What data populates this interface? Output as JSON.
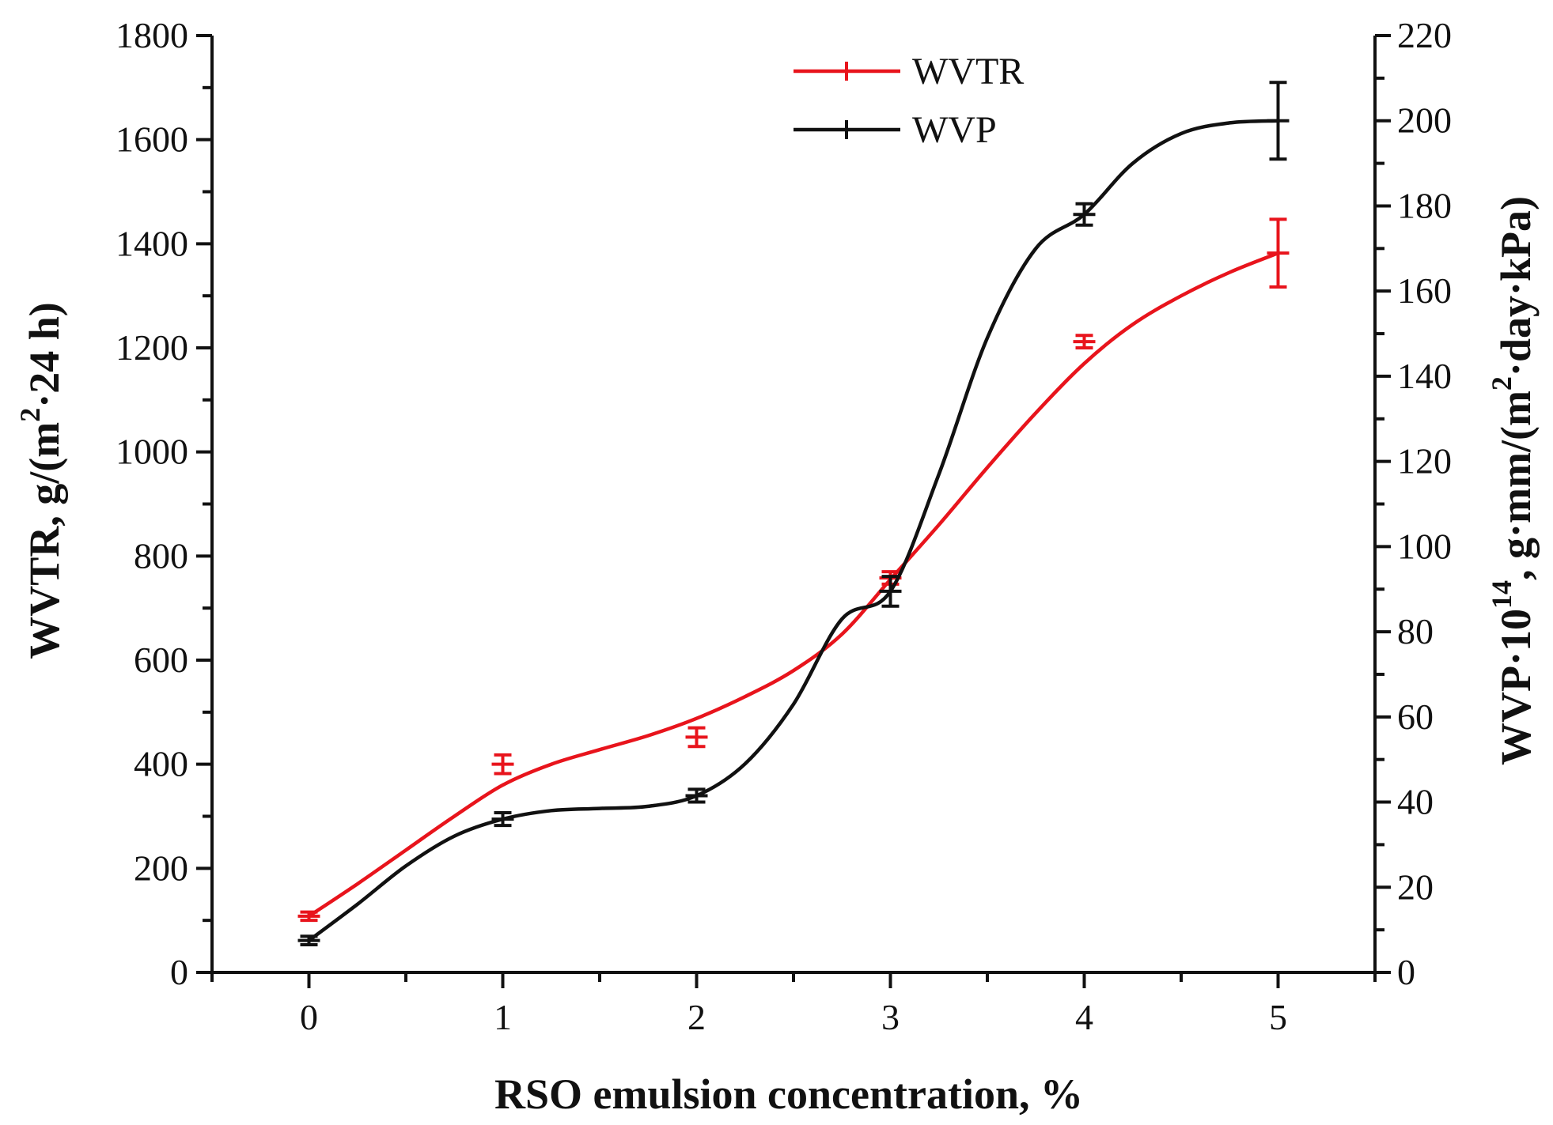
{
  "chart_data": {
    "type": "line",
    "title": "",
    "xlabel": "RSO emulsion concentration, %",
    "ylabel_left": {
      "prefix": "WVTR, g/(m",
      "sup": "2",
      "suffix": "·24 h)"
    },
    "ylabel_right": {
      "p1": "WVP·10",
      "sup1": "14",
      "p2": ", g·mm/(m",
      "sup2": "2",
      "p3": "·day·kPa)"
    },
    "x": [
      0,
      1,
      2,
      3,
      4,
      5
    ],
    "xlim": [
      -0.5,
      5.5
    ],
    "ylim_left": [
      0,
      1800
    ],
    "ylim_right": [
      0,
      220
    ],
    "x_ticks": [
      "0",
      "1",
      "2",
      "3",
      "4",
      "5"
    ],
    "y_left_ticks": [
      "0",
      "200",
      "400",
      "600",
      "800",
      "1000",
      "1200",
      "1400",
      "1600",
      "1800"
    ],
    "y_right_ticks": [
      "0",
      "20",
      "40",
      "60",
      "80",
      "100",
      "120",
      "140",
      "160",
      "180",
      "200",
      "220"
    ],
    "legend_position": "top-center",
    "series": [
      {
        "name": "WVTR",
        "axis": "left",
        "color": "#e8141c",
        "values": [
          108,
          400,
          452,
          758,
          1212,
          1382
        ],
        "errors": [
          8,
          18,
          18,
          12,
          12,
          65
        ],
        "curve_x": [
          0,
          0.25,
          0.5,
          0.75,
          1,
          1.25,
          1.5,
          1.75,
          2,
          2.25,
          2.5,
          2.75,
          3,
          3.25,
          3.5,
          3.75,
          4,
          4.25,
          4.5,
          4.75,
          5
        ],
        "curve_y": [
          108,
          170,
          235,
          300,
          360,
          400,
          428,
          455,
          488,
          530,
          580,
          650,
          755,
          860,
          970,
          1075,
          1170,
          1245,
          1300,
          1345,
          1382
        ]
      },
      {
        "name": "WVP",
        "axis": "right",
        "color": "#111111",
        "values": [
          7.5,
          36,
          41.5,
          89.5,
          178,
          200
        ],
        "errors": [
          1,
          1.5,
          1.5,
          3.5,
          2.5,
          9
        ],
        "curve_x": [
          0,
          0.25,
          0.5,
          0.75,
          1,
          1.25,
          1.5,
          1.75,
          2,
          2.25,
          2.5,
          2.75,
          3,
          3.25,
          3.5,
          3.75,
          4,
          4.25,
          4.5,
          4.75,
          5
        ],
        "curve_y": [
          7.5,
          16,
          25,
          32,
          36,
          38,
          38.5,
          39,
          41.5,
          49,
          63,
          83,
          89.5,
          117,
          149,
          170,
          178,
          190,
          197,
          199.5,
          200
        ]
      }
    ]
  }
}
